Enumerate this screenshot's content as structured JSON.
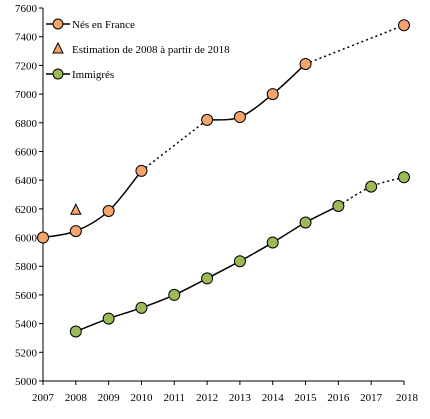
{
  "chart_data": {
    "type": "line",
    "title": "",
    "xlabel": "",
    "ylabel": "",
    "xlim": [
      2007,
      2018
    ],
    "ylim": [
      5000,
      7600
    ],
    "x_ticks": [
      "2007",
      "2008",
      "2009",
      "2010",
      "2011",
      "2012",
      "2013",
      "2014",
      "2015",
      "2016",
      "2017",
      "2018"
    ],
    "y_ticks": [
      "5000",
      "5200",
      "5400",
      "5600",
      "5800",
      "6000",
      "6200",
      "6400",
      "6600",
      "6800",
      "7000",
      "7200",
      "7400",
      "7600"
    ],
    "grid": false,
    "legend_position": "top-left",
    "legend": [
      {
        "label": "Nés en France",
        "marker": "circle",
        "color": "#f4a56d"
      },
      {
        "label": "Estimation de  2008 à partir de 2018",
        "marker": "triangle",
        "color": "#f4a56d"
      },
      {
        "label": "Immigrés",
        "marker": "circle",
        "color": "#9bbb59"
      }
    ],
    "series": [
      {
        "name": "Nés en France",
        "color": "#f4a56d",
        "points": [
          {
            "x": 2007,
            "y": 6000
          },
          {
            "x": 2008,
            "y": 6045
          },
          {
            "x": 2009,
            "y": 6185
          },
          {
            "x": 2010,
            "y": 6465
          },
          {
            "x": 2012,
            "y": 6820
          },
          {
            "x": 2013,
            "y": 6840
          },
          {
            "x": 2014,
            "y": 7000
          },
          {
            "x": 2015,
            "y": 7210
          },
          {
            "x": 2018,
            "y": 7480
          }
        ],
        "solid_segments": [
          [
            2007,
            2010
          ],
          [
            2012,
            2015
          ]
        ],
        "dotted_segments": [
          [
            2010,
            2012
          ],
          [
            2015,
            2018
          ]
        ]
      },
      {
        "name": "Estimation de  2008 à partir de 2018",
        "color": "#f4a56d",
        "points": [
          {
            "x": 2008,
            "y": 6190
          }
        ]
      },
      {
        "name": "Immigrés",
        "color": "#9bbb59",
        "points": [
          {
            "x": 2008,
            "y": 5345
          },
          {
            "x": 2009,
            "y": 5435
          },
          {
            "x": 2010,
            "y": 5510
          },
          {
            "x": 2011,
            "y": 5600
          },
          {
            "x": 2012,
            "y": 5715
          },
          {
            "x": 2013,
            "y": 5835
          },
          {
            "x": 2014,
            "y": 5965
          },
          {
            "x": 2015,
            "y": 6105
          },
          {
            "x": 2016,
            "y": 6220
          },
          {
            "x": 2017,
            "y": 6355
          },
          {
            "x": 2018,
            "y": 6420
          }
        ],
        "solid_segments": [
          [
            2008,
            2016
          ]
        ],
        "dotted_segments": [
          [
            2016,
            2018
          ]
        ]
      }
    ]
  }
}
